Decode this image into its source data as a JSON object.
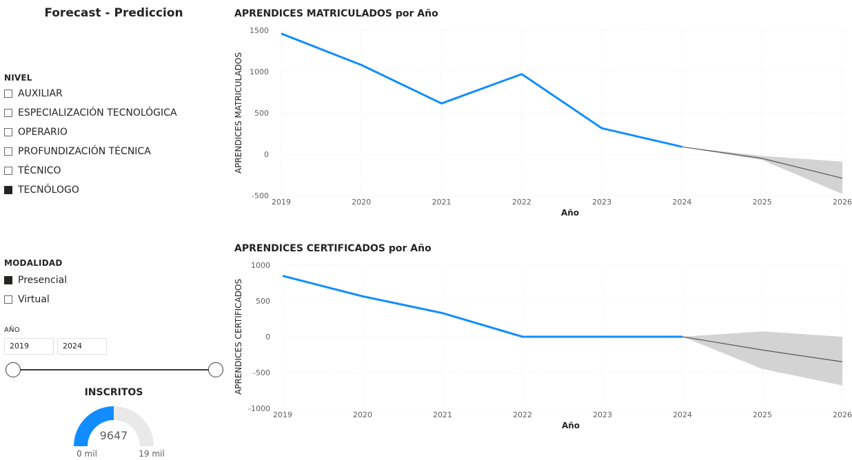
{
  "page_title": "Forecast - Prediccion",
  "nivel": {
    "header": "NIVEL",
    "items": [
      {
        "label": "AUXILIAR",
        "checked": false
      },
      {
        "label": "ESPECIALIZACIÓN TECNOLÓGICA",
        "checked": false
      },
      {
        "label": "OPERARIO",
        "checked": false
      },
      {
        "label": "PROFUNDIZACIÓN TÉCNICA",
        "checked": false
      },
      {
        "label": "TÉCNICO",
        "checked": false
      },
      {
        "label": "TECNÓLOGO",
        "checked": true
      }
    ]
  },
  "modalidad": {
    "header": "MODALIDAD",
    "items": [
      {
        "label": "Presencial",
        "checked": true
      },
      {
        "label": "Virtual",
        "checked": false
      }
    ]
  },
  "anio": {
    "header": "AÑO",
    "start": "2019",
    "end": "2024"
  },
  "gauge": {
    "title": "INSCRITOS",
    "value_label": "9647",
    "value": 9647,
    "min": 0,
    "max": 19294,
    "min_label": "0 mil",
    "max_label": "19 mil",
    "colors": {
      "fill": "#118dff",
      "track": "#e9e9e9"
    }
  },
  "chart_data": [
    {
      "type": "line",
      "title": "APRENDICES MATRICULADOS por Año",
      "xlabel": "Año",
      "ylabel": "APRENDICES MATRICULADOS",
      "x_ticks": [
        "2019",
        "2020",
        "2021",
        "2022",
        "2023",
        "2024",
        "2025",
        "2026"
      ],
      "y_ticks": [
        -500,
        0,
        500,
        1000,
        1500
      ],
      "y_tick_labels": [
        "-500",
        "0",
        "500",
        "1000",
        "1500"
      ],
      "ylim": [
        -500,
        1500
      ],
      "xlim": [
        2019,
        2026
      ],
      "grid": true,
      "series": [
        {
          "x": [
            2019,
            2020,
            2021,
            2022,
            2023,
            2024
          ],
          "values": [
            1460,
            1080,
            615,
            970,
            315,
            90
          ],
          "color": "#118dff"
        }
      ],
      "forecast": {
        "x": [
          2024,
          2025,
          2026
        ],
        "values": [
          90,
          -50,
          -290
        ],
        "lower": [
          90,
          -70,
          -480
        ],
        "upper": [
          90,
          -20,
          -90
        ],
        "line_color": "#555555",
        "band_color": "#d3d3d3"
      }
    },
    {
      "type": "line",
      "title": "APRENDICES CERTIFICADOS por Año",
      "xlabel": "Año",
      "ylabel": "APRENDICES CERTIFICADOS",
      "x_ticks": [
        "2019",
        "2020",
        "2021",
        "2022",
        "2023",
        "2024",
        "2025",
        "2026"
      ],
      "y_ticks": [
        -1000,
        -500,
        0,
        500,
        1000
      ],
      "y_tick_labels": [
        "-1000",
        "-500",
        "0",
        "500",
        "1000"
      ],
      "ylim": [
        -1000,
        1000
      ],
      "xlim": [
        2019,
        2026
      ],
      "grid": true,
      "series": [
        {
          "x": [
            2019,
            2020,
            2021,
            2022,
            2023,
            2024
          ],
          "values": [
            850,
            565,
            330,
            0,
            0,
            0
          ],
          "color": "#118dff"
        }
      ],
      "forecast": {
        "x": [
          2024,
          2025,
          2026
        ],
        "values": [
          0,
          -185,
          -350
        ],
        "lower": [
          0,
          -450,
          -680
        ],
        "upper": [
          0,
          75,
          0
        ],
        "line_color": "#555555",
        "band_color": "#d3d3d3"
      }
    }
  ]
}
